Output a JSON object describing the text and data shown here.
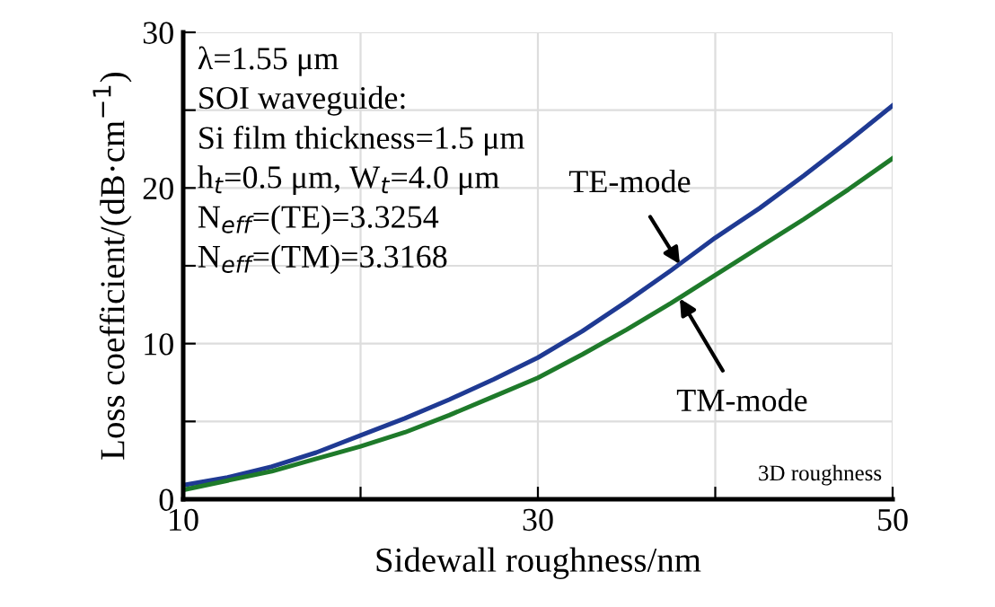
{
  "chart_data": {
    "type": "line",
    "xlabel": "Sidewall roughness/nm",
    "ylabel": "Loss coefficient/(dB·cm$^{−1}$)",
    "x": [
      10,
      12.5,
      15,
      17.5,
      20,
      22.5,
      25,
      27.5,
      30,
      32.5,
      35,
      37.5,
      40,
      42.5,
      45,
      47.5,
      50
    ],
    "series": [
      {
        "color": "#1f3a93",
        "values": [
          0.9,
          1.4,
          2.1,
          3.0,
          4.1,
          5.2,
          6.4,
          7.7,
          9.1,
          10.8,
          12.7,
          14.7,
          16.8,
          18.7,
          20.8,
          23.0,
          25.3
        ]
      },
      {
        "color": "#1e7a2a",
        "values": [
          0.6,
          1.2,
          1.8,
          2.6,
          3.4,
          4.3,
          5.4,
          6.6,
          7.8,
          9.3,
          10.9,
          12.6,
          14.4,
          16.2,
          18.0,
          19.9,
          21.9
        ]
      }
    ],
    "xlim": [
      10,
      50
    ],
    "ylim": [
      0,
      30
    ],
    "xticks": [
      10,
      {
        "value": 20,
        "label": null
      },
      30,
      {
        "value": 40,
        "label": null
      },
      50
    ],
    "yticks": [
      0,
      {
        "value": 5,
        "label": null
      },
      10,
      {
        "value": 15,
        "label": null
      },
      20,
      {
        "value": 25,
        "label": null
      },
      30
    ],
    "grid": true,
    "annotations": [
      "λ=1.55 μm",
      "SOI waveguide:",
      "Si film thickness=1.5 μm",
      "h$_{t}$=0.5 μm, W$_{t}$=4.0 μm",
      "N$_{eff}$=(TE)=3.3254",
      "N$_{eff}$=(TM)=3.3168",
      {
        "text": "TE-mode",
        "x": 38,
        "y": 15.1
      },
      {
        "text": "TM-mode",
        "x": 38,
        "y": 12.9
      },
      "3D roughness"
    ]
  }
}
